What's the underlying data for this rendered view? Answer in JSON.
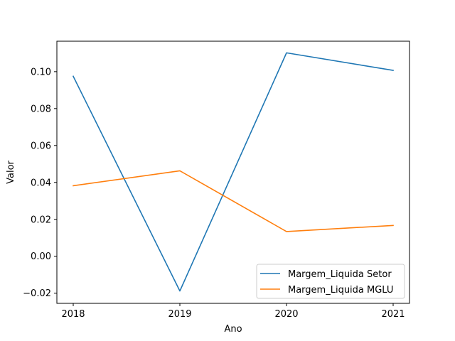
{
  "chart_data": {
    "type": "line",
    "title": "",
    "xlabel": "Ano",
    "ylabel": "Valor",
    "x": [
      2018,
      2019,
      2020,
      2021
    ],
    "x_ticks": [
      "2018",
      "2019",
      "2020",
      "2021"
    ],
    "y_ticks": [
      "−0.02",
      "0.00",
      "0.02",
      "0.04",
      "0.06",
      "0.08",
      "0.10"
    ],
    "y_tick_values": [
      -0.02,
      0.0,
      0.02,
      0.04,
      0.06,
      0.08,
      0.1
    ],
    "ylim": [
      -0.0255,
      0.1165
    ],
    "grid": false,
    "legend_position": "lower-right",
    "series": [
      {
        "name": "Margem_Liquida Setor",
        "color": "#1f77b4",
        "values": [
          0.0975,
          -0.0188,
          0.1102,
          0.1007
        ]
      },
      {
        "name": "Margem_Liquida MGLU",
        "color": "#ff7f0e",
        "values": [
          0.0382,
          0.0463,
          0.0134,
          0.0167
        ]
      }
    ]
  }
}
